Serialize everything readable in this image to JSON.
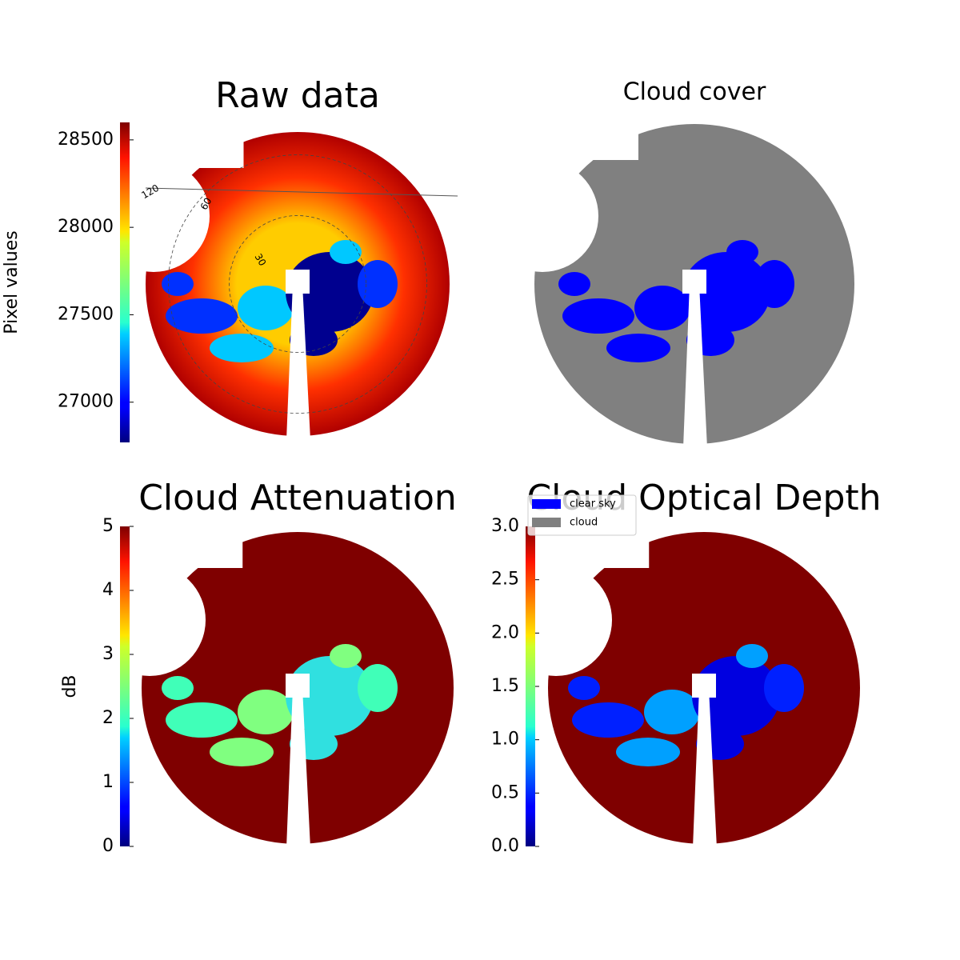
{
  "chart_data": [
    {
      "type": "image",
      "title": "Raw data",
      "colorbar_label": "Pixel values",
      "colormap": "jet",
      "clim": [
        26770,
        28600
      ],
      "cticks": [
        27000,
        27500,
        28000,
        28500
      ],
      "polar_labels": [
        "120",
        "30",
        "60"
      ]
    },
    {
      "type": "image",
      "title": "Cloud cover",
      "series": [
        {
          "name": "clear sky",
          "color": "#0000ff"
        },
        {
          "name": "cloud",
          "color": "#808080"
        }
      ]
    },
    {
      "type": "image",
      "title": "Cloud Attenuation",
      "colorbar_label": "dB",
      "colormap": "jet",
      "clim": [
        0,
        5
      ],
      "cticks": [
        0,
        1,
        2,
        3,
        4,
        5
      ]
    },
    {
      "type": "image",
      "title": "Cloud Optical Depth",
      "colormap": "jet",
      "clim": [
        0,
        3
      ],
      "cticks": [
        {
          "value": 0,
          "label": "0.0"
        },
        0.5,
        {
          "value": 1,
          "label": "1.0"
        },
        1.5,
        {
          "value": 2,
          "label": "2.0"
        },
        2.5,
        {
          "value": 3,
          "label": "3.0"
        }
      ]
    }
  ]
}
